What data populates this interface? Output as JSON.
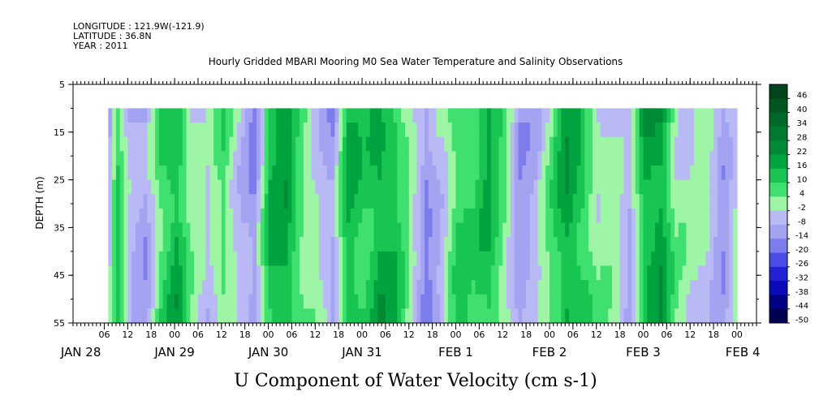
{
  "header": {
    "longitude": "LONGITUDE : 121.9W(-121.9)",
    "latitude": "LATITUDE : 36.8N",
    "year": "YEAR : 2011"
  },
  "chart_data": {
    "type": "heatmap",
    "title": "Hourly Gridded MBARI Mooring M0 Sea Water Temperature and Salinity Observations",
    "subtitle": "U Component of Water Velocity (cm s-1)",
    "ylabel": "DEPTH (m)",
    "y_range": [
      5,
      55
    ],
    "y_reversed": true,
    "y_ticks": [
      5,
      15,
      25,
      35,
      45,
      55
    ],
    "data_depth_range": [
      10,
      55
    ],
    "x_range_hours": [
      "2011-01-27 22:00",
      "2011-02-04 05:00"
    ],
    "x_data_start": "2011-01-28 09:00",
    "x_data_end": "2011-02-04 02:00",
    "x_hour_tick_labels": [
      "06",
      "12",
      "18",
      "00",
      "06",
      "12",
      "18",
      "00",
      "06",
      "12",
      "18",
      "00",
      "06",
      "12",
      "18",
      "00",
      "06",
      "12",
      "18",
      "00",
      "06",
      "12",
      "18",
      "00",
      "06",
      "12",
      "18",
      "00"
    ],
    "x_hour_tick_offsets_h": [
      8,
      14,
      20,
      26,
      32,
      38,
      44,
      50,
      56,
      62,
      68,
      74,
      80,
      86,
      92,
      98,
      104,
      110,
      116,
      122,
      128,
      134,
      140,
      146,
      152,
      158,
      164,
      170
    ],
    "x_day_labels": [
      "JAN 28",
      "JAN 29",
      "JAN 30",
      "JAN 31",
      "FEB  1",
      "FEB  2",
      "FEB  3",
      "FEB  4"
    ],
    "x_day_label_offsets_h": [
      2,
      26,
      50,
      74,
      98,
      122,
      146,
      171.5
    ],
    "colorbar": {
      "labels": [
        "46",
        "40",
        "34",
        "28",
        "22",
        "16",
        "10",
        "4",
        "-2",
        "-8",
        "-14",
        "-20",
        "-26",
        "-32",
        "-38",
        "-44",
        "-50"
      ],
      "colors": [
        "#00441b",
        "#00561e",
        "#00692a",
        "#007a31",
        "#008a35",
        "#00a33e",
        "#18c552",
        "#3fe070",
        "#9ff5a6",
        "#b9b9f5",
        "#a3a3f2",
        "#7c7ced",
        "#4c4ce6",
        "#2222d6",
        "#0a0ab8",
        "#000080",
        "#000050"
      ]
    },
    "series_note": "velocity field shown as banded green (positive) / blue (negative) cells",
    "bands_hours": [
      {
        "t": 9,
        "v": -6
      },
      {
        "t": 11,
        "v": 8
      },
      {
        "t": 14,
        "v": -10
      },
      {
        "t": 18,
        "v": -14
      },
      {
        "t": 22,
        "v": 6
      },
      {
        "t": 26,
        "v": 14
      },
      {
        "t": 30,
        "v": -4
      },
      {
        "t": 34,
        "v": -8
      },
      {
        "t": 38,
        "v": 4
      },
      {
        "t": 42,
        "v": -6
      },
      {
        "t": 46,
        "v": -16
      },
      {
        "t": 50,
        "v": 10
      },
      {
        "t": 54,
        "v": 16
      },
      {
        "t": 58,
        "v": 4
      },
      {
        "t": 62,
        "v": -4
      },
      {
        "t": 66,
        "v": -14
      },
      {
        "t": 70,
        "v": 12
      },
      {
        "t": 74,
        "v": 8
      },
      {
        "t": 78,
        "v": 16
      },
      {
        "t": 82,
        "v": 10
      },
      {
        "t": 86,
        "v": -4
      },
      {
        "t": 90,
        "v": -18
      },
      {
        "t": 94,
        "v": -6
      },
      {
        "t": 98,
        "v": 8
      },
      {
        "t": 102,
        "v": 4
      },
      {
        "t": 106,
        "v": 12
      },
      {
        "t": 110,
        "v": 2
      },
      {
        "t": 114,
        "v": -14
      },
      {
        "t": 118,
        "v": -10
      },
      {
        "t": 122,
        "v": 2
      },
      {
        "t": 126,
        "v": 16
      },
      {
        "t": 130,
        "v": 10
      },
      {
        "t": 134,
        "v": -2
      },
      {
        "t": 138,
        "v": -4
      },
      {
        "t": 142,
        "v": -12
      },
      {
        "t": 146,
        "v": 14
      },
      {
        "t": 150,
        "v": 18
      },
      {
        "t": 154,
        "v": -2
      },
      {
        "t": 158,
        "v": -6
      },
      {
        "t": 162,
        "v": -4
      },
      {
        "t": 166,
        "v": -14
      },
      {
        "t": 169,
        "v": -4
      }
    ]
  }
}
